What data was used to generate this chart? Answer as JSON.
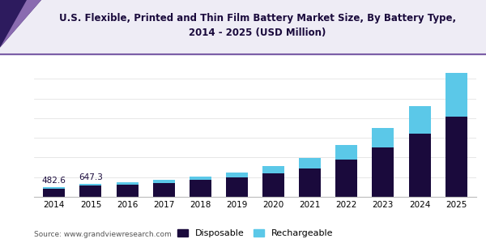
{
  "title": "U.S. Flexible, Printed and Thin Film Battery Market Size, By Battery Type,\n2014 - 2025 (USD Million)",
  "years": [
    2014,
    2015,
    2016,
    2017,
    2018,
    2019,
    2020,
    2021,
    2022,
    2023,
    2024,
    2025
  ],
  "disposable": [
    420,
    560,
    620,
    720,
    860,
    980,
    1200,
    1450,
    1900,
    2500,
    3200,
    4100
  ],
  "rechargeable": [
    62.6,
    87.3,
    110,
    140,
    190,
    270,
    380,
    520,
    720,
    1000,
    1400,
    2200
  ],
  "annotations": [
    {
      "year_idx": 0,
      "text": "482.6"
    },
    {
      "year_idx": 1,
      "text": "647.3"
    }
  ],
  "disposable_color": "#1a0a3c",
  "rechargeable_color": "#5bc8e8",
  "background_color": "#ffffff",
  "title_color": "#1a0a3c",
  "title_fontsize": 8.5,
  "bar_width": 0.6,
  "legend_labels": [
    "Disposable",
    "Rechargeable"
  ],
  "source_text": "Source: www.grandviewresearch.com",
  "header_bg": "#eeecf5",
  "header_line_color": "#7b5ea7",
  "tri_dark": "#2d1b5e",
  "tri_light": "#8a6bb0",
  "ylim": [
    0,
    6800
  ]
}
